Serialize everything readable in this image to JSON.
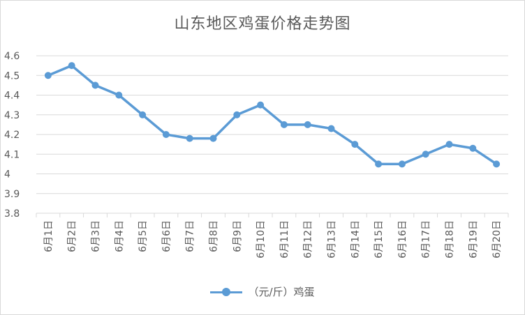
{
  "chart_data": {
    "type": "line",
    "title": "山东地区鸡蛋价格走势图",
    "categories": [
      "6月1日",
      "6月2日",
      "6月3日",
      "6月4日",
      "6月5日",
      "6月6日",
      "6月7日",
      "6月8日",
      "6月9日",
      "6月10日",
      "6月11日",
      "6月12日",
      "6月13日",
      "6月14日",
      "6月15日",
      "6月16日",
      "6月17日",
      "6月18日",
      "6月19日",
      "6月20日"
    ],
    "series": [
      {
        "name": "（元/斤）鸡蛋",
        "values": [
          4.5,
          4.55,
          4.45,
          4.4,
          4.3,
          4.2,
          4.18,
          4.18,
          4.3,
          4.35,
          4.25,
          4.25,
          4.23,
          4.15,
          4.05,
          4.05,
          4.1,
          4.15,
          4.13,
          4.05
        ]
      }
    ],
    "yticks": [
      "3.8",
      "3.9",
      "4",
      "4.1",
      "4.2",
      "4.3",
      "4.4",
      "4.5",
      "4.6"
    ],
    "ylim": [
      3.8,
      4.6
    ],
    "grid": true,
    "legend": "bottom",
    "color": "#5b9bd5"
  }
}
